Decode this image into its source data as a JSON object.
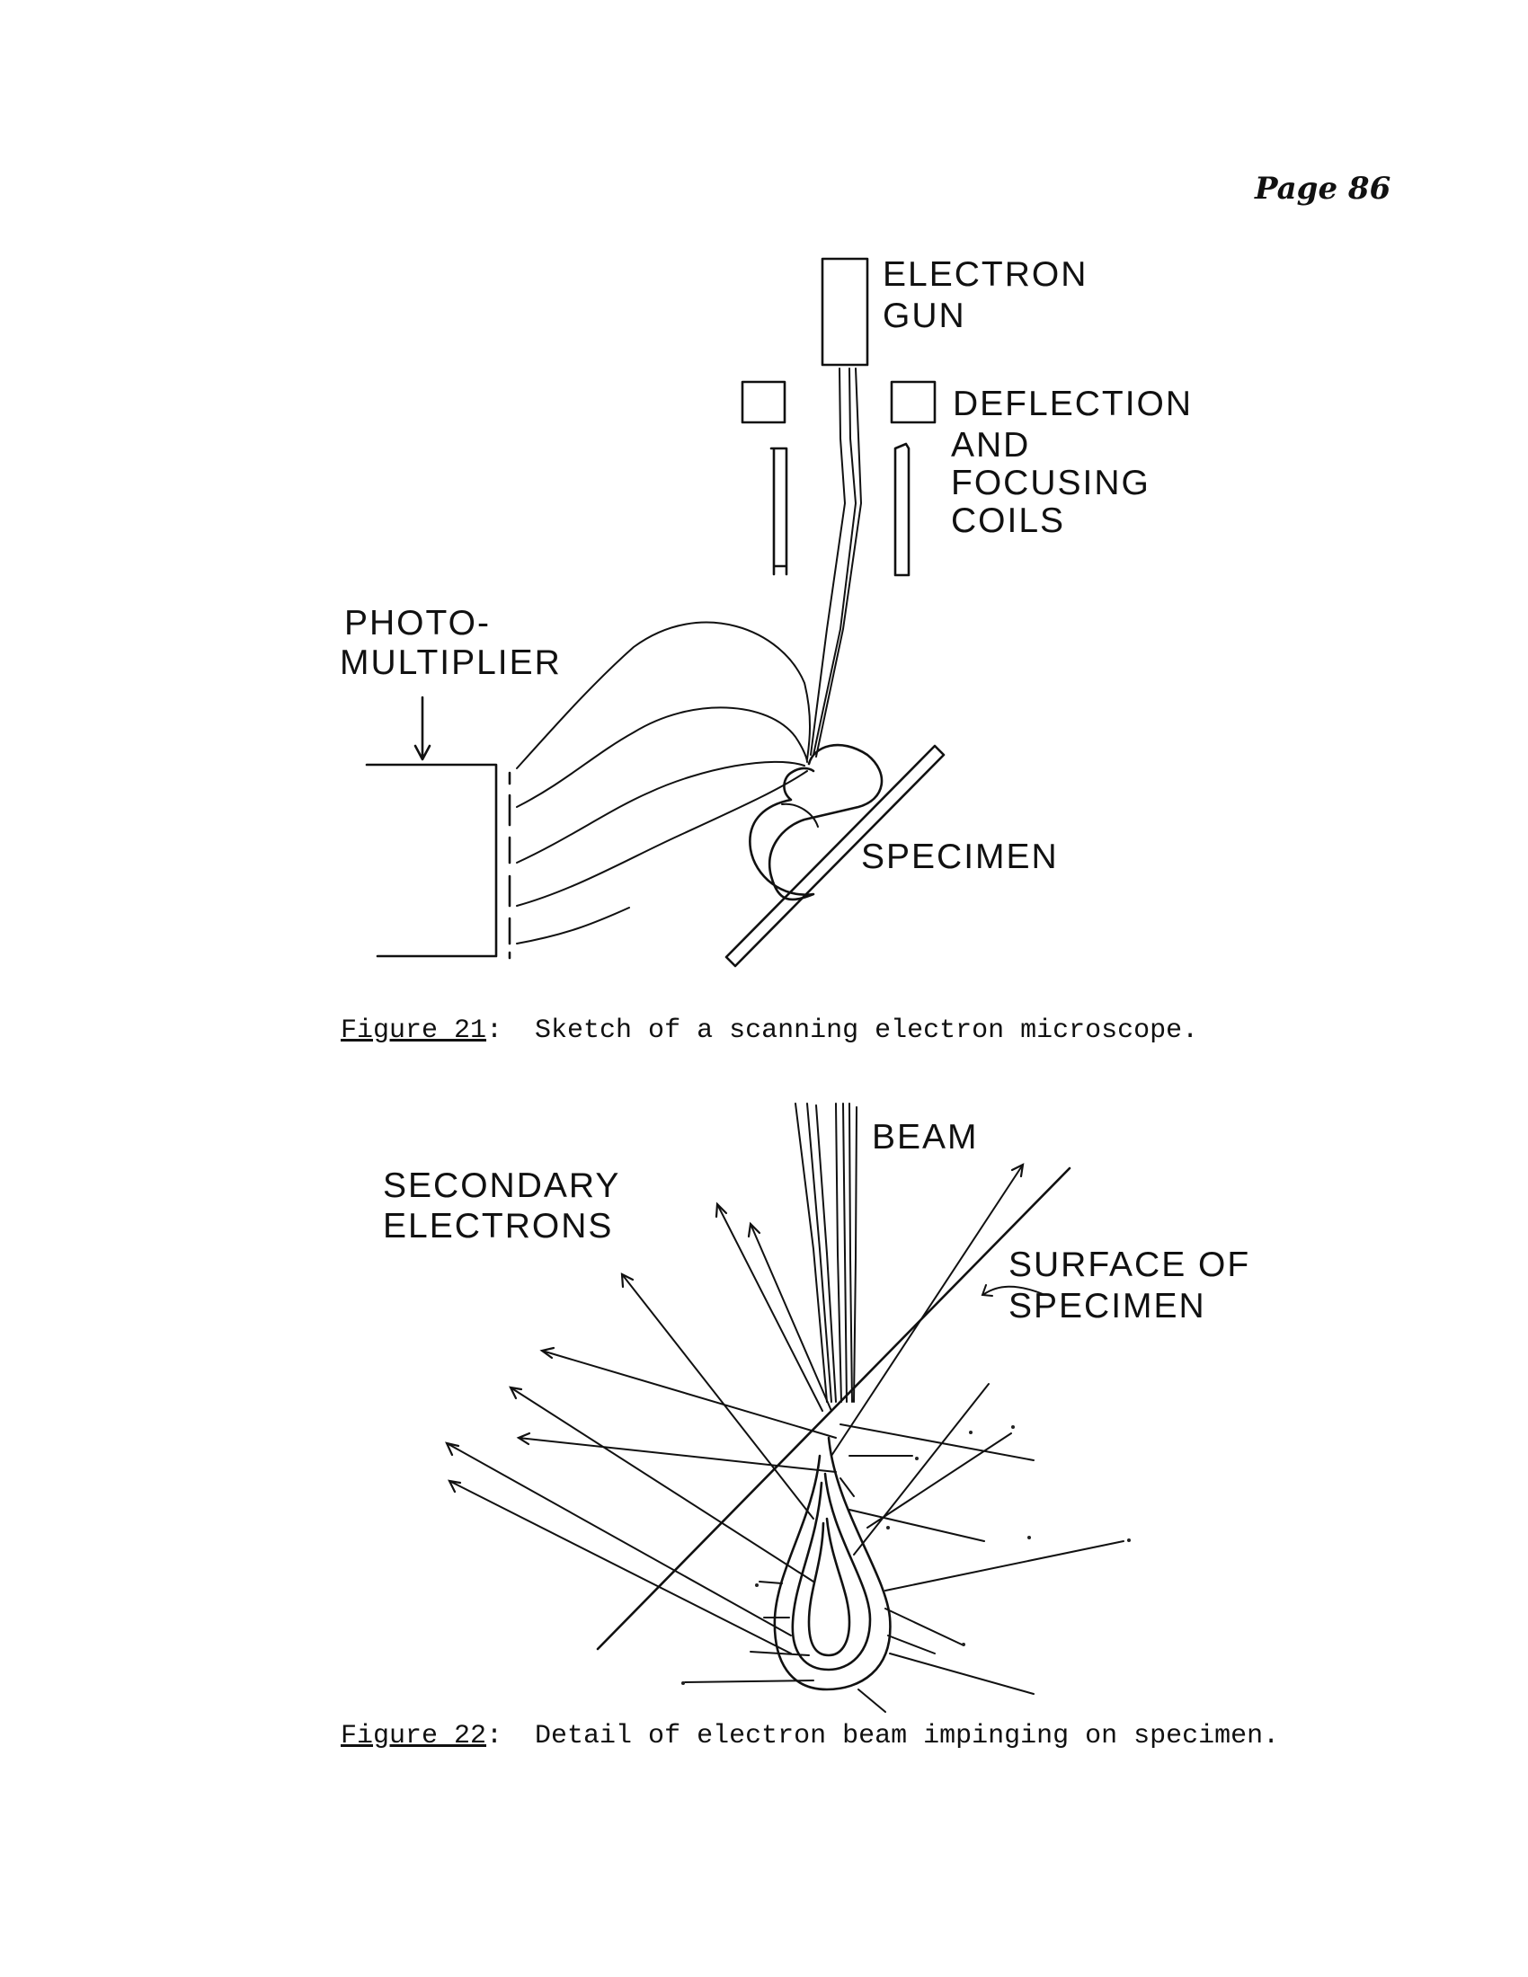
{
  "page": {
    "number": "Page 86"
  },
  "figure21": {
    "labels": {
      "electron": "ELECTRON",
      "gun": "GUN",
      "deflection": "DEFLECTION",
      "and": "AND",
      "focusing": "FOCUSING",
      "coils": "COILS",
      "photo": "PHOTO-",
      "multiplier": "MULTIPLIER",
      "specimen": "SPECIMEN"
    },
    "caption": {
      "ref": "Figure 21",
      "text": ":  Sketch of a scanning electron microscope."
    }
  },
  "figure22": {
    "labels": {
      "beam": "BEAM",
      "secondary": "SECONDARY",
      "electrons": "ELECTRONS",
      "surface_of": "SURFACE OF",
      "specimen": "SPECIMEN"
    },
    "caption": {
      "ref": "Figure 22",
      "text": ":  Detail of electron beam impinging on specimen."
    }
  }
}
